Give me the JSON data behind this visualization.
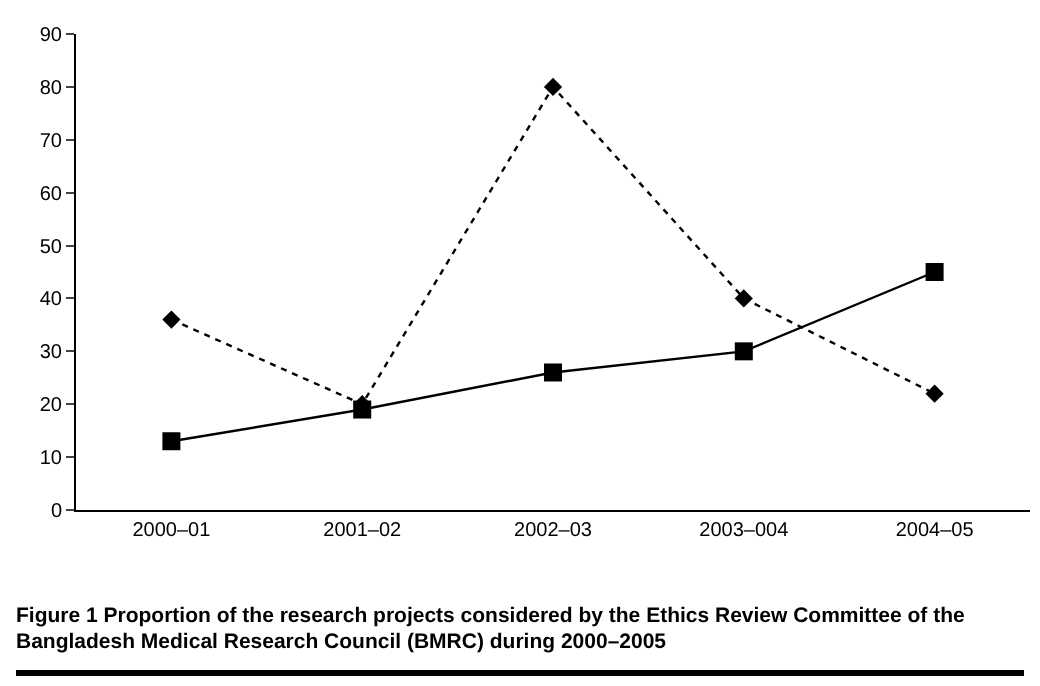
{
  "chart_data": {
    "type": "line",
    "categories": [
      "2000–01",
      "2001–02",
      "2002–03",
      "2003–004",
      "2004–05"
    ],
    "series": [
      {
        "color": "#000000",
        "values": [
          13,
          19,
          26,
          30,
          45
        ],
        "marker": "square",
        "line_style": "solid"
      },
      {
        "color": "#000000",
        "values": [
          36,
          20,
          80,
          40,
          22
        ],
        "marker": "diamond",
        "line_style": "dotted"
      }
    ],
    "ylim": [
      0,
      90
    ],
    "yticks": [
      0,
      10,
      20,
      30,
      40,
      50,
      60,
      70,
      80,
      90
    ],
    "grid": false,
    "legend": false,
    "annotations": [
      "Figure 1 Proportion of the research projects considered by the Ethics Review Committee of the Bangladesh Medical Research Council (BMRC) during 2000–2005"
    ]
  }
}
